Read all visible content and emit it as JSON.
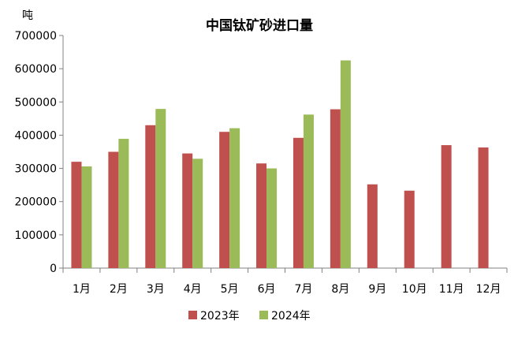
{
  "chart_data": {
    "type": "bar",
    "title": "中国钛矿砂进口量",
    "unit_label": "吨",
    "categories": [
      "1月",
      "2月",
      "3月",
      "4月",
      "5月",
      "6月",
      "7月",
      "8月",
      "9月",
      "10月",
      "11月",
      "12月"
    ],
    "series": [
      {
        "name": "2023年",
        "color": "#c0504d",
        "values": [
          320000,
          350000,
          430000,
          345000,
          410000,
          315000,
          392000,
          478000,
          252000,
          233000,
          370000,
          363000
        ]
      },
      {
        "name": "2024年",
        "color": "#9bbb59",
        "values": [
          306000,
          389000,
          479000,
          329000,
          421000,
          300000,
          462000,
          625000,
          null,
          null,
          null,
          null
        ]
      }
    ],
    "ylim": [
      0,
      700000
    ],
    "yticks": [
      "0",
      "100000",
      "200000",
      "300000",
      "400000",
      "500000",
      "600000",
      "700000"
    ],
    "grid": false,
    "legend_position": "bottom"
  }
}
